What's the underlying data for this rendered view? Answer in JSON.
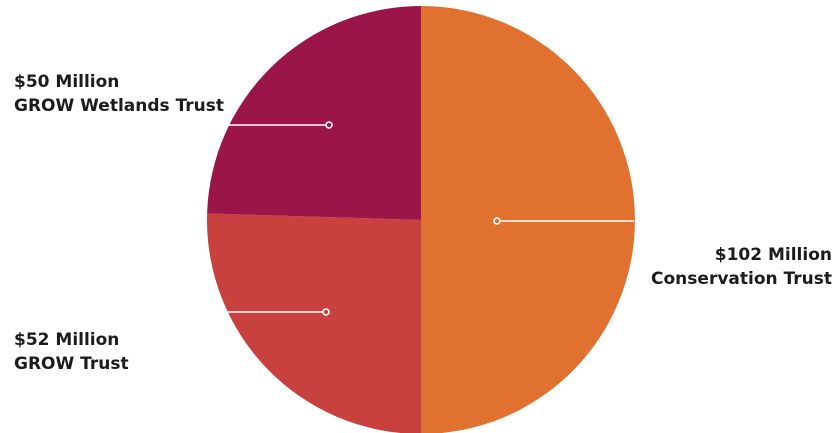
{
  "chart_data": {
    "type": "pie",
    "title": "",
    "slices": [
      {
        "amount": "$102 Million",
        "name": "Conservation Trust",
        "value": 102,
        "color": "#E1712E"
      },
      {
        "amount": "$52 Million",
        "name": "GROW Trust",
        "value": 52,
        "color": "#C8413E"
      },
      {
        "amount": "$50 Million",
        "name": "GROW Wetlands Trust",
        "value": 50,
        "color": "#9B1548"
      }
    ],
    "start_angle": "12 o'clock",
    "direction": "clockwise",
    "legend": "none",
    "label_style": "callout lines"
  }
}
